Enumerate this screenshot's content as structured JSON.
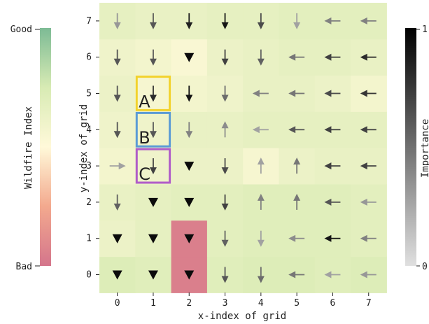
{
  "chart_data": {
    "type": "heatmap",
    "xlabel": "x-index of grid",
    "ylabel": "y-index of grid",
    "x_ticks": [
      "0",
      "1",
      "2",
      "3",
      "4",
      "5",
      "6",
      "7"
    ],
    "y_ticks": [
      "0",
      "1",
      "2",
      "3",
      "4",
      "5",
      "6",
      "7"
    ],
    "wildfire_colorbar": {
      "label": "Wildfire Index",
      "top": "Good",
      "bottom": "Bad",
      "colors": [
        "#d4758c",
        "#f3a98e",
        "#fff9d9",
        "#d8ebb4",
        "#7dbb95"
      ]
    },
    "importance_colorbar": {
      "label": "Importance",
      "max": "1",
      "min": "0"
    },
    "highlight_colors": {
      "A": "#f2d22c",
      "B": "#5b9bd5",
      "C": "#b05cc8"
    },
    "boxes": [
      {
        "label": "A",
        "x": 1,
        "y": 5
      },
      {
        "label": "B",
        "x": 1,
        "y": 4
      },
      {
        "label": "C",
        "x": 1,
        "y": 3
      }
    ],
    "wildfire_index": [
      [
        0.72,
        0.7,
        0.05,
        0.7,
        0.72,
        0.72,
        0.7,
        0.72
      ],
      [
        0.62,
        0.66,
        0.05,
        0.68,
        0.7,
        0.7,
        0.7,
        0.68
      ],
      [
        0.64,
        0.66,
        0.68,
        0.68,
        0.7,
        0.7,
        0.7,
        0.68
      ],
      [
        0.58,
        0.6,
        0.62,
        0.62,
        0.56,
        0.62,
        0.64,
        0.64
      ],
      [
        0.6,
        0.6,
        0.64,
        0.64,
        0.66,
        0.66,
        0.66,
        0.66
      ],
      [
        0.62,
        0.56,
        0.58,
        0.6,
        0.64,
        0.64,
        0.62,
        0.58
      ],
      [
        0.6,
        0.58,
        0.54,
        0.62,
        0.64,
        0.66,
        0.66,
        0.64
      ],
      [
        0.66,
        0.64,
        0.64,
        0.66,
        0.66,
        0.68,
        0.68,
        0.68
      ]
    ],
    "directions": [
      [
        "down",
        "down",
        "down",
        "down",
        "down",
        "left",
        "left",
        "left"
      ],
      [
        "down",
        "down",
        "down",
        "down",
        "down",
        "left",
        "left",
        "left"
      ],
      [
        "down",
        "down",
        "down",
        "down",
        "up",
        "up",
        "left",
        "left"
      ],
      [
        "right",
        "down",
        "down",
        "down",
        "up",
        "up",
        "left",
        "left"
      ],
      [
        "down",
        "down",
        "down",
        "up",
        "left",
        "left",
        "left",
        "left"
      ],
      [
        "down",
        "down",
        "down",
        "down",
        "left",
        "left",
        "left",
        "left"
      ],
      [
        "down",
        "down",
        "down",
        "down",
        "down",
        "left",
        "left",
        "left"
      ],
      [
        "down",
        "down",
        "down",
        "down",
        "down",
        "down",
        "left",
        "left"
      ]
    ],
    "importance": [
      [
        0.95,
        0.95,
        0.95,
        0.6,
        0.5,
        0.45,
        0.25,
        0.3
      ],
      [
        0.95,
        0.95,
        0.95,
        0.55,
        0.25,
        0.35,
        0.9,
        0.4
      ],
      [
        0.55,
        0.95,
        0.95,
        0.7,
        0.4,
        0.45,
        0.6,
        0.3
      ],
      [
        0.25,
        0.7,
        0.95,
        0.65,
        0.25,
        0.45,
        0.7,
        0.7
      ],
      [
        0.6,
        0.6,
        0.4,
        0.35,
        0.25,
        0.6,
        0.7,
        0.7
      ],
      [
        0.6,
        0.8,
        0.9,
        0.5,
        0.4,
        0.45,
        0.65,
        0.75
      ],
      [
        0.6,
        0.6,
        0.95,
        0.7,
        0.55,
        0.45,
        0.7,
        0.8
      ],
      [
        0.3,
        0.6,
        0.85,
        0.9,
        0.65,
        0.25,
        0.4,
        0.4
      ]
    ]
  }
}
